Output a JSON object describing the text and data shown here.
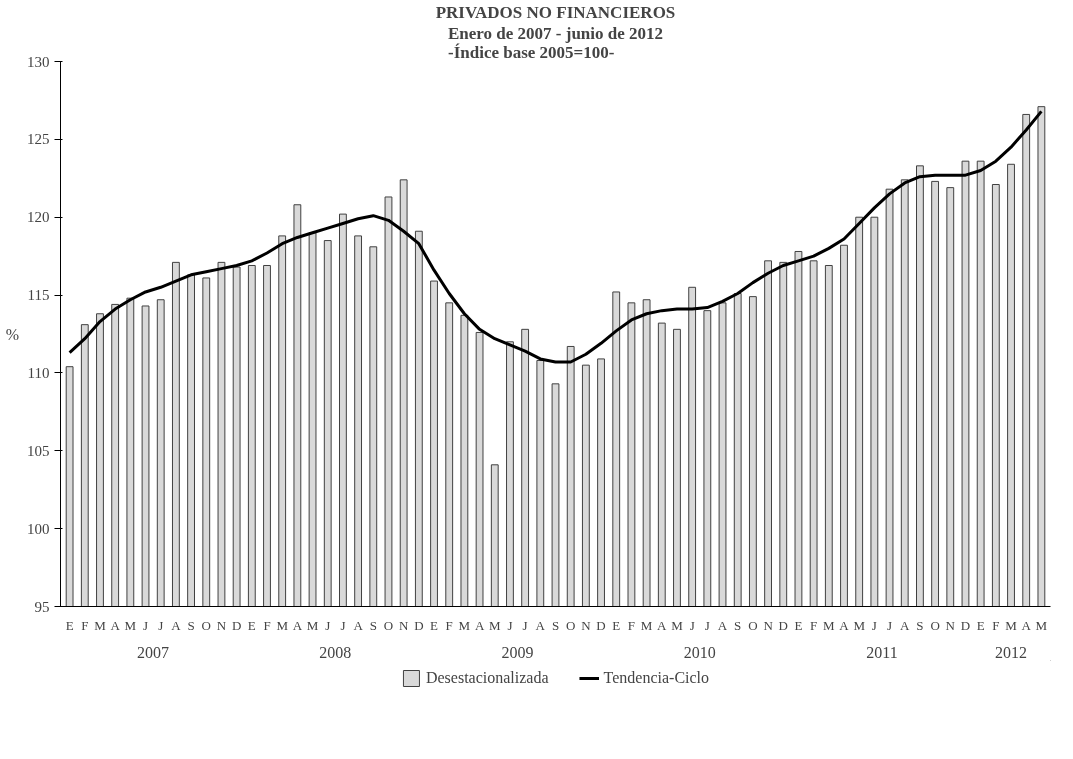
{
  "chart_data": {
    "type": "bar",
    "title": "PRIVADOS NO FINANCIEROS",
    "subtitle": "Enero de 2007 - junio de 2012\n-Índice base 2005=100-",
    "ylabel": "%",
    "categories": [
      "E",
      "F",
      "M",
      "A",
      "M",
      "J",
      "J",
      "A",
      "S",
      "O",
      "N",
      "D",
      "E",
      "F",
      "M",
      "A",
      "M",
      "J",
      "J",
      "A",
      "S",
      "O",
      "N",
      "D",
      "E",
      "F",
      "M",
      "A",
      "M",
      "J",
      "J",
      "A",
      "S",
      "O",
      "N",
      "D",
      "E",
      "F",
      "M",
      "A",
      "M",
      "J",
      "J",
      "A",
      "S",
      "O",
      "N",
      "D",
      "E",
      "F",
      "M",
      "A",
      "M",
      "J",
      "J",
      "A",
      "S",
      "O",
      "N",
      "D",
      "E",
      "F",
      "M",
      "A",
      "M"
    ],
    "annotations": [
      "2007",
      "2008",
      "2009",
      "2010",
      "2011",
      "2012"
    ],
    "series": [
      {
        "name": "Desestacionalizada",
        "color": "#d9d9d9",
        "values": [
          110.4,
          113.1,
          113.8,
          114.4,
          114.8,
          114.3,
          114.7,
          117.1,
          116.3,
          116.1,
          117.1,
          116.8,
          116.9,
          116.9,
          118.8,
          120.8,
          119.0,
          118.5,
          120.2,
          118.8,
          118.1,
          121.3,
          122.4,
          119.1,
          115.9,
          114.5,
          113.7,
          112.6,
          104.1,
          112.0,
          112.8,
          110.8,
          109.3,
          111.7,
          110.5,
          110.9,
          115.2,
          114.5,
          114.7,
          113.2,
          112.8,
          115.5,
          114.0,
          114.5,
          115.1,
          114.9,
          117.2,
          117.1,
          117.8,
          117.2,
          116.9,
          118.2,
          120.0,
          120.0,
          121.8,
          122.4,
          123.3,
          122.3,
          121.9,
          123.6,
          123.6,
          122.1,
          123.4,
          126.6,
          127.1
        ]
      },
      {
        "name": "Tendencia-Ciclo",
        "type": "line",
        "color": "#000000",
        "values": [
          111.3,
          112.2,
          113.3,
          114.1,
          114.7,
          115.2,
          115.5,
          115.9,
          116.3,
          116.5,
          116.7,
          116.9,
          117.2,
          117.7,
          118.3,
          118.7,
          119.0,
          119.3,
          119.6,
          119.9,
          120.1,
          119.8,
          119.1,
          118.3,
          116.6,
          115.1,
          113.8,
          112.8,
          112.2,
          111.8,
          111.4,
          110.9,
          110.7,
          110.7,
          111.2,
          111.9,
          112.7,
          113.4,
          113.8,
          114.0,
          114.1,
          114.1,
          114.2,
          114.6,
          115.1,
          115.8,
          116.4,
          116.9,
          117.2,
          117.5,
          118.0,
          118.6,
          119.6,
          120.6,
          121.5,
          122.2,
          122.6,
          122.7,
          122.7,
          122.7,
          123.0,
          123.6,
          124.5,
          125.6,
          126.8
        ]
      }
    ],
    "ylim": [
      95,
      130
    ],
    "yticks": [
      95,
      100,
      105,
      110,
      115,
      120,
      125,
      130
    ],
    "grid": false,
    "legend": "bottom",
    "line_style": "solid",
    "marker": "none"
  }
}
